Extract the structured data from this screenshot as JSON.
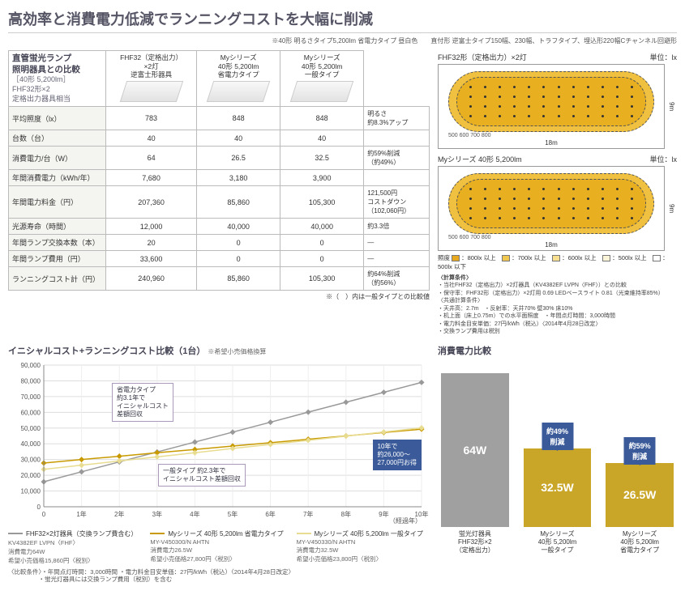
{
  "title": "高効率と消費電力低減でランニングコストを大幅に削減",
  "subnote": "※40形 明るさタイプ5,200lm 省電力タイプ 昼白色　　直付形 逆富士タイプ150幅、230幅、トラフタイプ、埋込形220幅Cチャンネル回避形",
  "table": {
    "desc_title": "直管蛍光ランプ\n照明器具との比較",
    "desc_sub": "［40形 5,200lm］\nFHF32形×2\n定格出力器具相当",
    "heads": [
      "FHF32（定格出力）\n×2灯\n逆富士形器具",
      "Myシリーズ\n40形 5,200lm\n省電力タイプ",
      "Myシリーズ\n40形 5,200lm\n一般タイプ"
    ],
    "rows": [
      {
        "h": "平均照度（lx）",
        "c": [
          "783",
          "848",
          "848"
        ],
        "n": "明るさ\n約8.3%アップ"
      },
      {
        "h": "台数（台）",
        "c": [
          "40",
          "40",
          "40"
        ],
        "n": ""
      },
      {
        "h": "消費電力/台（W）",
        "c": [
          "64",
          "26.5",
          "32.5"
        ],
        "n": "約59%削減\n（約49%）"
      },
      {
        "h": "年間消費電力（kWh/年）",
        "c": [
          "7,680",
          "3,180",
          "3,900"
        ],
        "n": ""
      },
      {
        "h": "年間電力料金（円）",
        "c": [
          "207,360",
          "85,860",
          "105,300"
        ],
        "n": "121,500円\nコストダウン\n（102,060円）"
      },
      {
        "h": "光源寿命（時間）",
        "c": [
          "12,000",
          "40,000",
          "40,000"
        ],
        "n": "約3.3倍"
      },
      {
        "h": "年間ランプ交換本数（本）",
        "c": [
          "20",
          "0",
          "0"
        ],
        "n": "—"
      },
      {
        "h": "年間ランプ費用（円）",
        "c": [
          "33,600",
          "0",
          "0"
        ],
        "n": "—"
      },
      {
        "h": "ランニングコスト計（円）",
        "c": [
          "240,960",
          "85,860",
          "105,300"
        ],
        "n": "約64%削減\n（約56%）"
      }
    ],
    "foot": "※（　）内は一般タイプとの比較値"
  },
  "lux": {
    "title1": "FHF32形（定格出力）×2灯",
    "title2": "Myシリーズ 40形 5,200lm",
    "unit": "単位：lx",
    "dim_h": "18m",
    "dim_v": "9m",
    "ticks": "500 600 700 800",
    "legend_head": "照度",
    "legend": [
      {
        "c": "#e8a820",
        "t": "：800lx 以上"
      },
      {
        "c": "#f0c850",
        "t": "：700lx 以上"
      },
      {
        "c": "#f8e090",
        "t": "：600lx 以上"
      },
      {
        "c": "#fcf4d8",
        "t": "：500lx 以上"
      },
      {
        "c": "#ffffff",
        "t": "：500lx 以下"
      }
    ],
    "notes_head": "〈計算条件〉",
    "notes": [
      "・当社FHF32（定格出力）×2灯器具（KV4382EF LVPN〈FHF〉）との比較",
      "・保守率：FHF32形（定格出力）×2灯用 0.69 LEDベースライト 0.81（光束維持率85%）",
      "〈共通計算条件〉",
      "・天井高：2.7m　・反射率：天井70% 壁30% 床10%",
      "・机上面（床上0.75m）での水平面照度　・年間点灯時間：3,000時間",
      "・電力料金目安単価：27円/kWh（税込）〈2014年4月28日改定〉",
      "・交換ランプ費用は税別"
    ]
  },
  "linechart": {
    "title": "イニシャルコスト+ランニングコスト比較（1台）",
    "sub": "※希望小売価格換算",
    "ylabel_max": 90000,
    "y_step": 10000,
    "x_years": [
      "0",
      "1年",
      "2年",
      "3年",
      "4年",
      "5年",
      "6年",
      "7年",
      "8年",
      "9年",
      "10年"
    ],
    "x_sub": "（経過年）",
    "series": [
      {
        "name": "FHF32×2灯器具（交換ランプ費含む）",
        "model": "KV4382EF LVPN〈FHF〉",
        "power": "消費電力64W",
        "price": "希望小売価格15,860円〈税別〉",
        "color": "#999999",
        "marker": "diamond",
        "y": [
          15860,
          22200,
          28500,
          34800,
          41100,
          47400,
          53700,
          60100,
          66400,
          72700,
          79000
        ]
      },
      {
        "name": "Myシリーズ 40形 5,200lm 省電力タイプ",
        "model": "MY-V450300/N AHTN",
        "power": "消費電力26.5W",
        "price": "希望小売価格27,800円〈税別〉",
        "color": "#c99a00",
        "marker": "diamond",
        "y": [
          27800,
          30000,
          32100,
          34300,
          36400,
          38600,
          40700,
          42900,
          45000,
          47200,
          49300
        ]
      },
      {
        "name": "Myシリーズ 40形 5,200lm 一般タイプ",
        "model": "MY-V450330/N AHTN",
        "power": "消費電力32.5W",
        "price": "希望小売価格23,800円〈税別〉",
        "color": "#e8dc90",
        "marker": "diamond",
        "y": [
          23800,
          26400,
          29100,
          31700,
          34300,
          37000,
          39600,
          42200,
          44900,
          47500,
          50100
        ]
      }
    ],
    "annot1": "省電力タイプ\n約3.1年で\nイニシャルコスト\n差額回収",
    "annot2": "一般タイプ 約2.3年で\nイニシャルコスト差額回収",
    "annot3": "10年で\n約26,000〜\n27,000円お得",
    "footnote": "〈比較条件〉・年間点灯時間：3,000時間 ・電力料金目安単価：27円/kWh（税込）〈2014年4月28日改定〉\n　　　　　・蛍光灯器具には交換ランプ費用（税別）を含む"
  },
  "barchart": {
    "title": "消費電力比較",
    "bars": [
      {
        "label": "蛍光灯器具\nFHF32形×2\n（定格出力）",
        "value": 64,
        "text": "64W",
        "color": "#a0a0a0",
        "badge": null
      },
      {
        "label": "Myシリーズ\n40形 5,200lm\n一般タイプ",
        "value": 32.5,
        "text": "32.5W",
        "color": "#c9a628",
        "badge": "約49%\n削減"
      },
      {
        "label": "Myシリーズ\n40形 5,200lm\n省電力タイプ",
        "value": 26.5,
        "text": "26.5W",
        "color": "#c9a628",
        "badge": "約59%\n削減"
      }
    ]
  }
}
